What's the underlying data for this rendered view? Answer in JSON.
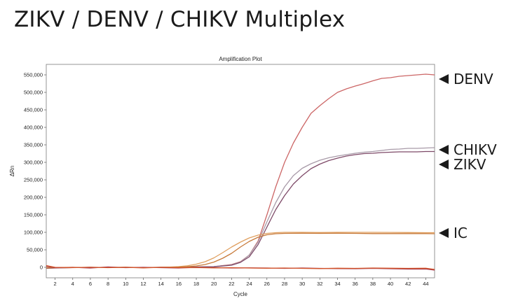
{
  "page": {
    "title": "ZIKV / DENV / CHIKV Multiplex"
  },
  "chart_data": {
    "type": "line",
    "title": "Amplification Plot",
    "xlabel": "Cycle",
    "ylabel": "ΔRn",
    "xlim": [
      1,
      45
    ],
    "ylim": [
      -30000,
      580000
    ],
    "xticks": [
      2,
      4,
      6,
      8,
      10,
      12,
      14,
      16,
      18,
      20,
      22,
      24,
      26,
      28,
      30,
      32,
      34,
      36,
      38,
      40,
      42,
      44
    ],
    "xtick_labels": [
      "2",
      "4",
      "6",
      "8",
      "10",
      "12",
      "14",
      "16",
      "18",
      "20",
      "22",
      "24",
      "26",
      "28",
      "30",
      "32",
      "34",
      "36",
      "38",
      "40",
      "42",
      "44"
    ],
    "yticks": [
      0,
      50000,
      100000,
      150000,
      200000,
      250000,
      300000,
      350000,
      400000,
      450000,
      500000,
      550000
    ],
    "ytick_labels": [
      "0",
      "50,000",
      "100,000",
      "150,000",
      "200,000",
      "250,000",
      "300,000",
      "350,000",
      "400,000",
      "450,000",
      "500,000",
      "550,000"
    ],
    "grid": true,
    "series": [
      {
        "name": "DENV",
        "color": "#cc6666",
        "x": [
          1,
          2,
          4,
          6,
          8,
          10,
          12,
          14,
          16,
          18,
          20,
          22,
          23,
          24,
          25,
          26,
          27,
          28,
          29,
          30,
          31,
          32,
          33,
          34,
          35,
          36,
          37,
          38,
          39,
          40,
          41,
          42,
          43,
          44,
          45
        ],
        "y": [
          -3000,
          -2000,
          -1000,
          0,
          -500,
          0,
          -1000,
          0,
          500,
          1000,
          2000,
          8000,
          16000,
          35000,
          75000,
          150000,
          230000,
          300000,
          355000,
          400000,
          440000,
          462000,
          482000,
          500000,
          510000,
          518000,
          525000,
          533000,
          540000,
          542000,
          546000,
          548000,
          550000,
          552000,
          550000
        ]
      },
      {
        "name": "CHIKV",
        "color": "#a89aa8",
        "x": [
          1,
          2,
          4,
          6,
          8,
          10,
          12,
          14,
          16,
          18,
          20,
          22,
          23,
          24,
          25,
          26,
          27,
          28,
          29,
          30,
          31,
          32,
          33,
          34,
          35,
          36,
          37,
          38,
          39,
          40,
          41,
          42,
          43,
          44,
          45
        ],
        "y": [
          -2000,
          -1000,
          -500,
          0,
          -800,
          0,
          -500,
          0,
          500,
          1000,
          2000,
          7000,
          15000,
          35000,
          72000,
          130000,
          185000,
          230000,
          262000,
          283000,
          296000,
          306000,
          313000,
          318000,
          322000,
          326000,
          329000,
          331000,
          334000,
          337000,
          338000,
          340000,
          340000,
          341000,
          342000
        ]
      },
      {
        "name": "ZIKV",
        "color": "#7e4a68",
        "x": [
          1,
          2,
          4,
          6,
          8,
          10,
          12,
          14,
          16,
          18,
          20,
          22,
          23,
          24,
          25,
          26,
          27,
          28,
          29,
          30,
          31,
          32,
          33,
          34,
          35,
          36,
          37,
          38,
          39,
          40,
          41,
          42,
          43,
          44,
          45
        ],
        "y": [
          -2500,
          -1500,
          -800,
          0,
          -600,
          0,
          -800,
          0,
          300,
          800,
          1500,
          6000,
          14000,
          30000,
          65000,
          115000,
          165000,
          205000,
          238000,
          262000,
          282000,
          295000,
          305000,
          312000,
          318000,
          322000,
          325000,
          326000,
          328000,
          329000,
          330000,
          330000,
          330000,
          331000,
          331000
        ]
      },
      {
        "name": "IC",
        "color": "#e0a060",
        "x": [
          1,
          2,
          4,
          6,
          8,
          10,
          12,
          14,
          15,
          16,
          17,
          18,
          19,
          20,
          21,
          22,
          23,
          24,
          25,
          26,
          27,
          28,
          30,
          32,
          34,
          36,
          38,
          40,
          42,
          44,
          45
        ],
        "y": [
          -1000,
          -500,
          0,
          -500,
          0,
          0,
          -500,
          0,
          800,
          2000,
          4500,
          9000,
          16000,
          27000,
          42000,
          58000,
          72000,
          84000,
          92000,
          97000,
          99000,
          100000,
          100000,
          99500,
          100000,
          100000,
          100000,
          99800,
          99500,
          99000,
          99000
        ]
      },
      {
        "name": "IC",
        "color": "#c77a3a",
        "x": [
          1,
          2,
          4,
          6,
          8,
          10,
          12,
          14,
          15,
          16,
          17,
          18,
          19,
          20,
          21,
          22,
          23,
          24,
          25,
          26,
          27,
          28,
          30,
          32,
          34,
          36,
          38,
          40,
          42,
          44,
          45
        ],
        "y": [
          -1500,
          -1000,
          -500,
          0,
          -500,
          0,
          -500,
          0,
          300,
          800,
          1800,
          4000,
          8000,
          15000,
          26000,
          40000,
          58000,
          74000,
          86000,
          93000,
          96000,
          97000,
          97500,
          97000,
          97500,
          97000,
          96500,
          96500,
          96500,
          96500,
          96000
        ]
      },
      {
        "name": "",
        "color": "#a23248",
        "x": [
          1,
          2,
          4,
          6,
          8,
          10,
          12,
          14,
          16,
          18,
          20,
          22,
          24,
          26,
          28,
          30,
          32,
          34,
          36,
          38,
          40,
          42,
          44,
          45
        ],
        "y": [
          3000,
          -1000,
          0,
          -2000,
          1000,
          -1000,
          0,
          -1000,
          -2000,
          0,
          -1000,
          -2000,
          -1500,
          -2000,
          -3000,
          -2000,
          -3000,
          -3500,
          -4000,
          -3000,
          -4000,
          -5000,
          -4500,
          -8000
        ]
      },
      {
        "name": "",
        "color": "#d4552a",
        "x": [
          1,
          2,
          4,
          6,
          8,
          10,
          12,
          14,
          16,
          18,
          20,
          22,
          24,
          26,
          28,
          30,
          32,
          34,
          36,
          38,
          40,
          42,
          44,
          45
        ],
        "y": [
          5000,
          0,
          -500,
          0,
          -1000,
          0,
          -1500,
          0,
          -1000,
          -500,
          -1500,
          -1000,
          -2000,
          -2500,
          -2000,
          -3000,
          -3500,
          -2500,
          -3000,
          -2000,
          -2500,
          -3000,
          -2500,
          -6000
        ]
      }
    ],
    "callouts": [
      {
        "label": "DENV",
        "value": 550000
      },
      {
        "label": "CHIKV",
        "value": 345000
      },
      {
        "label": "ZIKV",
        "value": 305000
      },
      {
        "label": "IC",
        "value": 100000
      }
    ]
  }
}
